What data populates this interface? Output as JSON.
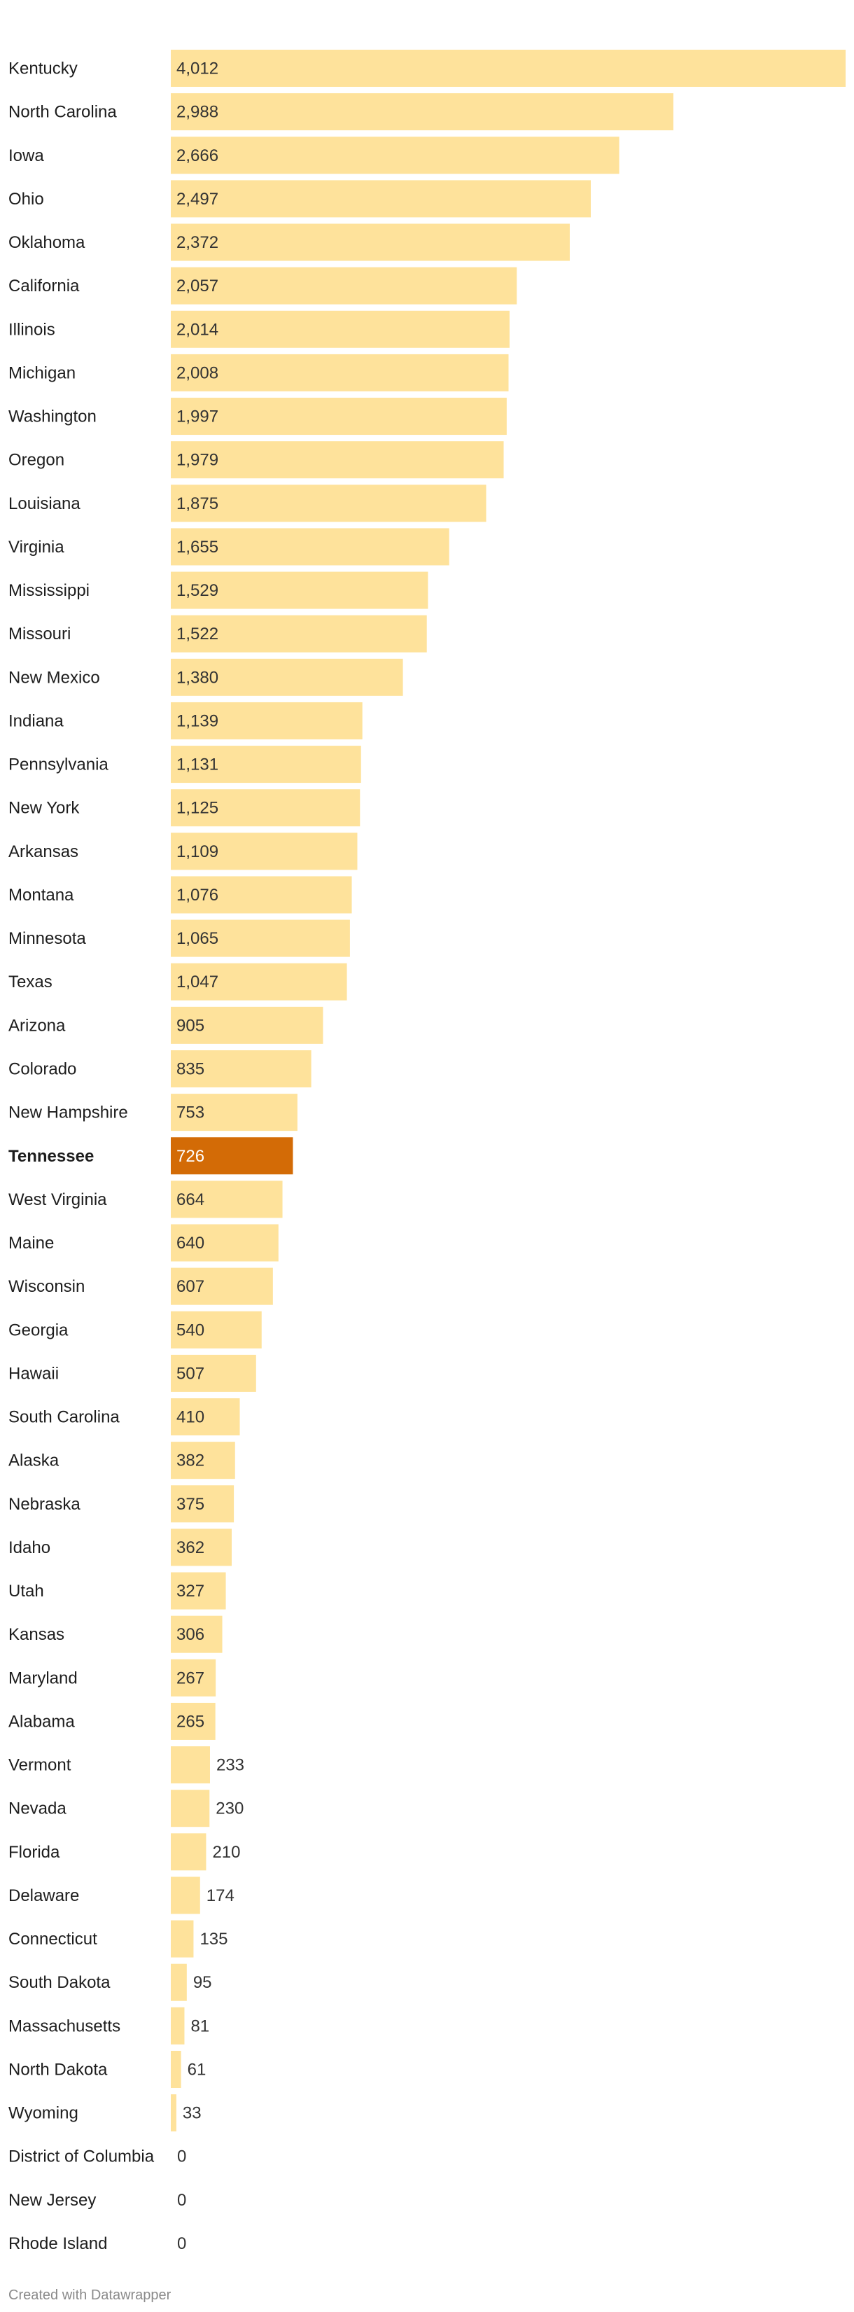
{
  "chart_data": {
    "type": "bar",
    "orientation": "horizontal",
    "categories": [
      "Kentucky",
      "North Carolina",
      "Iowa",
      "Ohio",
      "Oklahoma",
      "California",
      "Illinois",
      "Michigan",
      "Washington",
      "Oregon",
      "Louisiana",
      "Virginia",
      "Mississippi",
      "Missouri",
      "New Mexico",
      "Indiana",
      "Pennsylvania",
      "New York",
      "Arkansas",
      "Montana",
      "Minnesota",
      "Texas",
      "Arizona",
      "Colorado",
      "New Hampshire",
      "Tennessee",
      "West Virginia",
      "Maine",
      "Wisconsin",
      "Georgia",
      "Hawaii",
      "South Carolina",
      "Alaska",
      "Nebraska",
      "Idaho",
      "Utah",
      "Kansas",
      "Maryland",
      "Alabama",
      "Vermont",
      "Nevada",
      "Florida",
      "Delaware",
      "Connecticut",
      "South Dakota",
      "Massachusetts",
      "North Dakota",
      "Wyoming",
      "District of Columbia",
      "New Jersey",
      "Rhode Island"
    ],
    "values": [
      4012,
      2988,
      2666,
      2497,
      2372,
      2057,
      2014,
      2008,
      1997,
      1979,
      1875,
      1655,
      1529,
      1522,
      1380,
      1139,
      1131,
      1125,
      1109,
      1076,
      1065,
      1047,
      905,
      835,
      753,
      726,
      664,
      640,
      607,
      540,
      507,
      410,
      382,
      375,
      362,
      327,
      306,
      267,
      265,
      233,
      230,
      210,
      174,
      135,
      95,
      81,
      61,
      33,
      0,
      0,
      0
    ],
    "value_labels": [
      "4,012",
      "2,988",
      "2,666",
      "2,497",
      "2,372",
      "2,057",
      "2,014",
      "2,008",
      "1,997",
      "1,979",
      "1,875",
      "1,655",
      "1,529",
      "1,522",
      "1,380",
      "1,139",
      "1,131",
      "1,125",
      "1,109",
      "1,076",
      "1,065",
      "1,047",
      "905",
      "835",
      "753",
      "726",
      "664",
      "640",
      "607",
      "540",
      "507",
      "410",
      "382",
      "375",
      "362",
      "327",
      "306",
      "267",
      "265",
      "233",
      "230",
      "210",
      "174",
      "135",
      "95",
      "81",
      "61",
      "33",
      "0",
      "0",
      "0"
    ],
    "highlight": "Tennessee",
    "xlim": [
      0,
      4012
    ],
    "colors": {
      "bar": "#fee29b",
      "highlight": "#d36b06"
    }
  },
  "footer": {
    "credit": "Created with Datawrapper"
  }
}
